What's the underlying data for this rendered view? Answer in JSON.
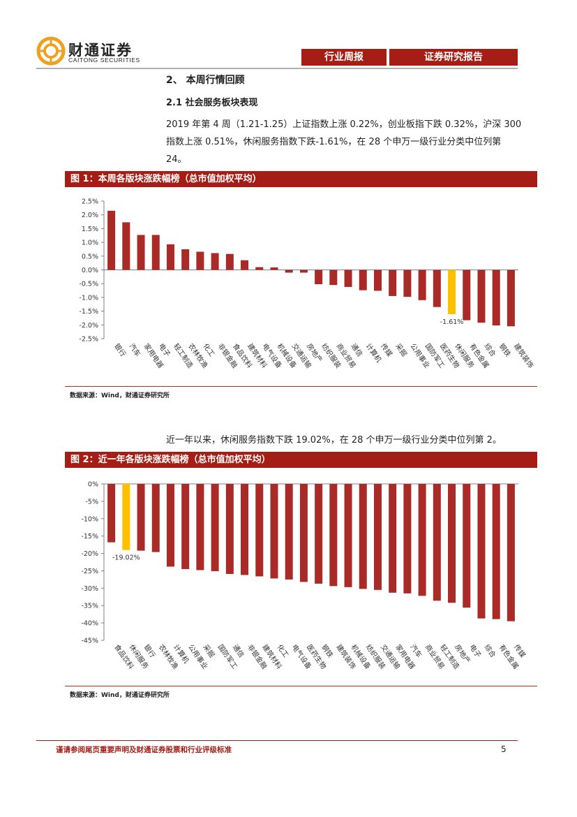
{
  "header": {
    "logo_cn": "财通证券",
    "logo_en": "CAITONG SECURITIES",
    "tag_weekly": "行业周报",
    "tag_report": "证券研究报告"
  },
  "section": {
    "heading": "2、 本周行情回顾",
    "subheading": "2.1  社会服务板块表现",
    "para1": "2019 年第 4 周（1.21-1.25）上证指数上涨 0.22%，创业板指下跌 0.32%，沪深 300 指数上涨 0.51%，休闲服务指数下跌-1.61%，在 28 个申万一级行业分类中位列第 24。",
    "para2": "近一年以来，休闲服务指数下跌 19.02%，在 28 个申万一级行业分类中位列第 2。"
  },
  "figures": {
    "fig1_title": "图 1：本周各版块涨跌幅榜（总市值加权平均）",
    "fig2_title": "图 2：近一年各版块涨跌幅榜（总市值加权平均）",
    "source1": "数据来源：Wind，财通证券研究所",
    "source2": "数据来源：Wind，财通证券研究所"
  },
  "footer": {
    "disclaimer": "谨请参阅尾页重要声明及财通证券股票和行业评级标准",
    "page_number": "5"
  },
  "colors": {
    "bar": "#a92a26",
    "highlight": "#ffc000",
    "accent": "#a51e16"
  },
  "chart_data": [
    {
      "type": "bar",
      "title": "图 1：本周各版块涨跌幅榜（总市值加权平均）",
      "categories": [
        "银行",
        "汽车",
        "家用电器",
        "电子",
        "轻工制造",
        "农林牧渔",
        "化工",
        "非银金融",
        "食品饮料",
        "建筑材料",
        "电气设备",
        "机械设备",
        "交通运输",
        "房地产",
        "纺织服装",
        "商业贸易",
        "通信",
        "计算机",
        "传媒",
        "采掘",
        "公用事业",
        "国防军工",
        "医药生物",
        "休闲服务",
        "有色金属",
        "综合",
        "钢铁",
        "建筑装饰"
      ],
      "values": [
        2.15,
        1.73,
        1.27,
        1.27,
        0.93,
        0.75,
        0.66,
        0.61,
        0.58,
        0.35,
        0.1,
        0.09,
        -0.1,
        -0.1,
        -0.52,
        -0.55,
        -0.62,
        -0.74,
        -0.76,
        -0.95,
        -0.98,
        -1.1,
        -1.35,
        -1.61,
        -1.83,
        -1.92,
        -2.02,
        -2.05
      ],
      "highlight": "休闲服务",
      "annotation": "-1.61%",
      "ylim": [
        -2.5,
        2.5
      ],
      "yticks": [
        "2.5%",
        "2.0%",
        "1.5%",
        "1.0%",
        "0.5%",
        "0.0%",
        "-0.5%",
        "-1.0%",
        "-1.5%",
        "-2.0%",
        "-2.5%"
      ],
      "grid": false
    },
    {
      "type": "bar",
      "title": "图 2：近一年各版块涨跌幅榜（总市值加权平均）",
      "categories": [
        "食品饮料",
        "休闲服务",
        "银行",
        "农林牧渔",
        "计算机",
        "公用事业",
        "采掘",
        "国防军工",
        "通信",
        "非银金融",
        "建筑材料",
        "化工",
        "电气设备",
        "医药生物",
        "钢铁",
        "建筑装饰",
        "机械设备",
        "纺织服装",
        "交通运输",
        "家用电器",
        "汽车",
        "商业贸易",
        "轻工制造",
        "房地产",
        "电子",
        "综合",
        "有色金属",
        "传媒"
      ],
      "values": [
        -16.8,
        -19.02,
        -19.2,
        -19.6,
        -23.8,
        -24.5,
        -24.8,
        -25.1,
        -25.9,
        -26.2,
        -26.6,
        -27.2,
        -27.5,
        -28.2,
        -28.7,
        -29.4,
        -29.7,
        -30.2,
        -30.5,
        -31.3,
        -31.5,
        -32.2,
        -33.6,
        -34.2,
        -35.6,
        -38.7,
        -38.9,
        -39.5
      ],
      "highlight": "休闲服务",
      "annotation": "-19.02%",
      "ylim": [
        -45,
        0
      ],
      "yticks": [
        "0%",
        "-5%",
        "-10%",
        "-15%",
        "-20%",
        "-25%",
        "-30%",
        "-35%",
        "-40%",
        "-45%"
      ],
      "grid": false
    }
  ]
}
